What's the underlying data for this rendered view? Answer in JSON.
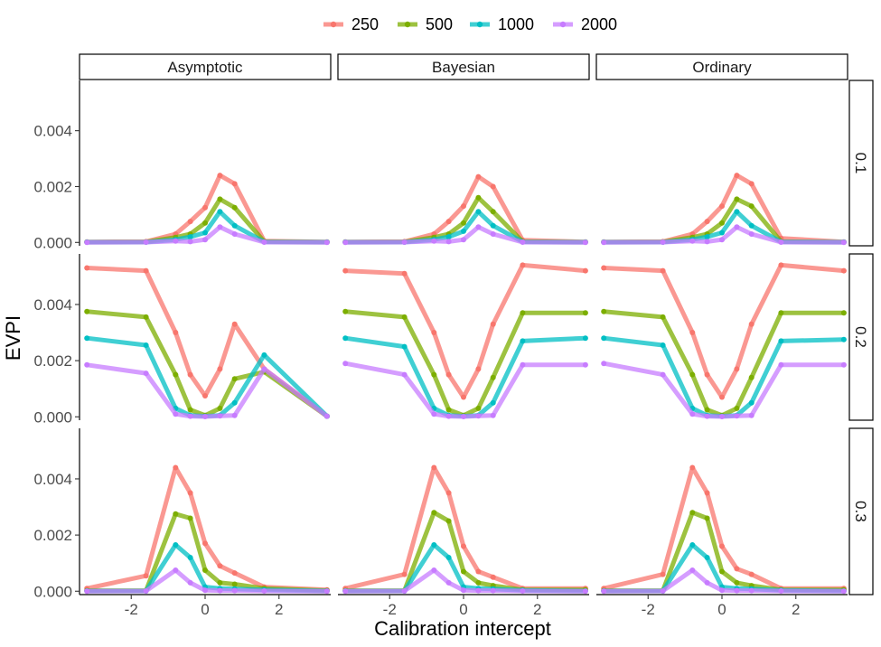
{
  "chart_data": {
    "type": "line",
    "xlabel": "Calibration intercept",
    "ylabel": "EVPI",
    "xlim": [
      -3.4,
      3.4
    ],
    "ylim": [
      -0.00012,
      0.0058
    ],
    "x_ticks": [
      -2,
      0,
      2
    ],
    "x_tick_labels": [
      "-2",
      "0",
      "2"
    ],
    "y_ticks": [
      0.0,
      0.002,
      0.004
    ],
    "y_tick_labels": [
      "0.000",
      "0.002",
      "0.004"
    ],
    "legend_position": "top",
    "grid": false,
    "x": [
      -3.2,
      -1.6,
      -0.8,
      -0.4,
      0.0,
      0.4,
      0.8,
      1.6,
      3.3
    ],
    "series": [
      {
        "name": "250",
        "color": "#F8766D"
      },
      {
        "name": "500",
        "color": "#7CAE00"
      },
      {
        "name": "1000",
        "color": "#00BFC4"
      },
      {
        "name": "2000",
        "color": "#C77CFF"
      }
    ],
    "column_facets": [
      "Asymptotic",
      "Bayesian",
      "Ordinary"
    ],
    "row_facets": [
      "0.1",
      "0.2",
      "0.3"
    ],
    "panels": [
      {
        "col": "Asymptotic",
        "row": "0.1",
        "values": {
          "250": [
            2e-05,
            3e-05,
            0.0003,
            0.00075,
            0.00125,
            0.0024,
            0.0021,
            5e-05,
            2e-05
          ],
          "500": [
            1e-05,
            2e-05,
            0.00018,
            0.0003,
            0.0007,
            0.00155,
            0.00125,
            3e-05,
            1e-05
          ],
          "1000": [
            1e-05,
            1e-05,
            0.0001,
            0.0002,
            0.00035,
            0.0011,
            0.0006,
            2e-05,
            1e-05
          ],
          "2000": [
            0.0,
            1e-05,
            5e-05,
            3e-05,
            0.0001,
            0.00055,
            0.0003,
            1e-05,
            0.0
          ]
        }
      },
      {
        "col": "Bayesian",
        "row": "0.1",
        "values": {
          "250": [
            2e-05,
            3e-05,
            0.0003,
            0.00075,
            0.0013,
            0.00235,
            0.002,
            8e-05,
            2e-05
          ],
          "500": [
            1e-05,
            2e-05,
            0.00018,
            0.0003,
            0.0007,
            0.0016,
            0.0011,
            3e-05,
            1e-05
          ],
          "1000": [
            1e-05,
            1e-05,
            0.0001,
            0.0002,
            0.0004,
            0.0011,
            0.0006,
            2e-05,
            1e-05
          ],
          "2000": [
            0.0,
            1e-05,
            5e-05,
            3e-05,
            0.0001,
            0.00055,
            0.0003,
            1e-05,
            0.0
          ]
        }
      },
      {
        "col": "Ordinary",
        "row": "0.1",
        "values": {
          "250": [
            2e-05,
            3e-05,
            0.0003,
            0.00075,
            0.0013,
            0.0024,
            0.0021,
            0.00015,
            2e-05
          ],
          "500": [
            1e-05,
            2e-05,
            0.00018,
            0.0003,
            0.0007,
            0.00155,
            0.0013,
            3e-05,
            1e-05
          ],
          "1000": [
            1e-05,
            1e-05,
            0.0001,
            0.0002,
            0.00035,
            0.0011,
            0.0006,
            2e-05,
            1e-05
          ],
          "2000": [
            0.0,
            1e-05,
            5e-05,
            3e-05,
            0.0001,
            0.00055,
            0.0003,
            1e-05,
            0.0
          ]
        }
      },
      {
        "col": "Asymptotic",
        "row": "0.2",
        "values": {
          "250": [
            0.0053,
            0.0052,
            0.003,
            0.0015,
            0.00075,
            0.0017,
            0.0033,
            0.0017,
            2e-05
          ],
          "500": [
            0.00375,
            0.00355,
            0.0015,
            0.00025,
            5e-05,
            0.0003,
            0.00135,
            0.0016,
            2e-05
          ],
          "1000": [
            0.0028,
            0.00255,
            0.0003,
            5e-05,
            2e-05,
            5e-05,
            0.0005,
            0.0022,
            2e-05
          ],
          "2000": [
            0.00185,
            0.00155,
            0.0001,
            2e-05,
            1e-05,
            3e-05,
            5e-05,
            0.0017,
            2e-05
          ]
        }
      },
      {
        "col": "Bayesian",
        "row": "0.2",
        "values": {
          "250": [
            0.0052,
            0.0051,
            0.003,
            0.0015,
            0.0007,
            0.0017,
            0.0033,
            0.0054,
            0.0052
          ],
          "500": [
            0.00375,
            0.00355,
            0.0015,
            0.00025,
            5e-05,
            0.0003,
            0.0014,
            0.0037,
            0.0037
          ],
          "1000": [
            0.0028,
            0.0025,
            0.0003,
            5e-05,
            2e-05,
            5e-05,
            0.0005,
            0.0027,
            0.0028
          ],
          "2000": [
            0.0019,
            0.0015,
            0.0001,
            2e-05,
            1e-05,
            3e-05,
            5e-05,
            0.00185,
            0.00185
          ]
        }
      },
      {
        "col": "Ordinary",
        "row": "0.2",
        "values": {
          "250": [
            0.0053,
            0.0052,
            0.003,
            0.0015,
            0.0007,
            0.0017,
            0.0033,
            0.0054,
            0.0052
          ],
          "500": [
            0.00375,
            0.00355,
            0.0015,
            0.00025,
            5e-05,
            0.0003,
            0.0014,
            0.0037,
            0.0037
          ],
          "1000": [
            0.0028,
            0.00255,
            0.0003,
            5e-05,
            2e-05,
            5e-05,
            0.0005,
            0.0027,
            0.00275
          ],
          "2000": [
            0.0019,
            0.0015,
            0.0001,
            2e-05,
            1e-05,
            3e-05,
            5e-05,
            0.00185,
            0.00185
          ]
        }
      },
      {
        "col": "Asymptotic",
        "row": "0.3",
        "values": {
          "250": [
            0.0001,
            0.00055,
            0.0044,
            0.0035,
            0.0017,
            0.0009,
            0.00065,
            0.00015,
            5e-05
          ],
          "500": [
            2e-05,
            2e-05,
            0.00275,
            0.0026,
            0.00075,
            0.0003,
            0.00025,
            0.0001,
            2e-05
          ],
          "1000": [
            1e-05,
            1e-05,
            0.00165,
            0.0012,
            0.00015,
            0.0001,
            8e-05,
            5e-05,
            1e-05
          ],
          "2000": [
            0.0,
            1e-05,
            0.00075,
            0.0003,
            3e-05,
            2e-05,
            2e-05,
            1e-05,
            0.0
          ]
        }
      },
      {
        "col": "Bayesian",
        "row": "0.3",
        "values": {
          "250": [
            0.0001,
            0.0006,
            0.0044,
            0.0035,
            0.0016,
            0.0007,
            0.0005,
            0.0001,
            0.0001
          ],
          "500": [
            2e-05,
            2e-05,
            0.0028,
            0.0025,
            0.0007,
            0.0003,
            0.0002,
            5e-05,
            5e-05
          ],
          "1000": [
            1e-05,
            1e-05,
            0.00165,
            0.0012,
            0.00015,
            0.0001,
            8e-05,
            3e-05,
            1e-05
          ],
          "2000": [
            0.0,
            1e-05,
            0.00075,
            0.0003,
            3e-05,
            2e-05,
            2e-05,
            1e-05,
            0.0
          ]
        }
      },
      {
        "col": "Ordinary",
        "row": "0.3",
        "values": {
          "250": [
            0.0001,
            0.0006,
            0.0044,
            0.0035,
            0.0016,
            0.0008,
            0.0006,
            0.0001,
            0.0001
          ],
          "500": [
            2e-05,
            2e-05,
            0.0028,
            0.0026,
            0.0007,
            0.0003,
            0.0002,
            5e-05,
            5e-05
          ],
          "1000": [
            1e-05,
            1e-05,
            0.00165,
            0.0012,
            0.00015,
            0.0001,
            8e-05,
            3e-05,
            1e-05
          ],
          "2000": [
            0.0,
            1e-05,
            0.00075,
            0.0003,
            3e-05,
            2e-05,
            2e-05,
            1e-05,
            0.0
          ]
        }
      }
    ]
  }
}
